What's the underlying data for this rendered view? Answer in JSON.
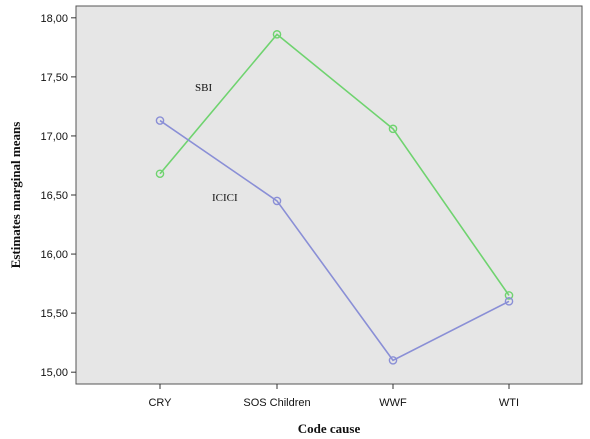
{
  "chart_data": {
    "type": "line",
    "xlabel": "Code cause",
    "ylabel": "Estimates marginal means",
    "categories": [
      "CRY",
      "SOS Children",
      "WWF",
      "WTI"
    ],
    "ylim": [
      14.9,
      18.1
    ],
    "yticks": [
      "15,00",
      "15,50",
      "16,00",
      "16,50",
      "17,00",
      "17,50",
      "18,00"
    ],
    "ytick_values": [
      15.0,
      15.5,
      16.0,
      16.5,
      17.0,
      17.5,
      18.0
    ],
    "grid": false,
    "background": "#e6e6e6",
    "series": [
      {
        "name": "SBI",
        "color": "#6fd36f",
        "values": [
          16.68,
          17.86,
          17.06,
          15.65
        ]
      },
      {
        "name": "ICICI",
        "color": "#8a8fd6",
        "values": [
          17.13,
          16.45,
          15.1,
          15.6
        ]
      }
    ]
  }
}
